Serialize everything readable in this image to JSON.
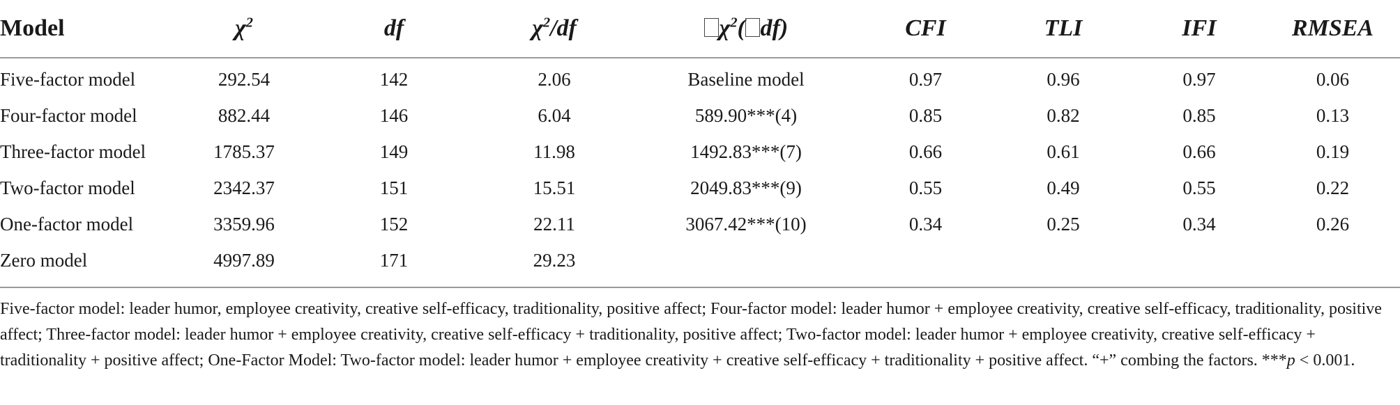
{
  "table": {
    "headers": {
      "model": "Model",
      "chi2": "χ",
      "chi2_sup": "2",
      "df": "df",
      "chi2_df": "χ",
      "chi2_df_sup": "2",
      "chi2_df_rest": "/df",
      "delta_chi2_a": "χ",
      "delta_chi2_sup": "2",
      "delta_chi2_b": "(",
      "delta_chi2_c": "df)",
      "cfi": "CFI",
      "tli": "TLI",
      "ifi": "IFI",
      "rmsea": "RMSEA"
    },
    "rows": [
      {
        "model": "Five-factor model",
        "chi2": "292.54",
        "df": "142",
        "chi2_df": "2.06",
        "delta": "Baseline model",
        "cfi": "0.97",
        "tli": "0.96",
        "ifi": "0.97",
        "rmsea": "0.06"
      },
      {
        "model": "Four-factor model",
        "chi2": "882.44",
        "df": "146",
        "chi2_df": "6.04",
        "delta": "589.90***(4)",
        "cfi": "0.85",
        "tli": "0.82",
        "ifi": "0.85",
        "rmsea": "0.13"
      },
      {
        "model": "Three-factor model",
        "chi2": "1785.37",
        "df": "149",
        "chi2_df": "11.98",
        "delta": "1492.83***(7)",
        "cfi": "0.66",
        "tli": "0.61",
        "ifi": "0.66",
        "rmsea": "0.19"
      },
      {
        "model": "Two-factor model",
        "chi2": "2342.37",
        "df": "151",
        "chi2_df": "15.51",
        "delta": "2049.83***(9)",
        "cfi": "0.55",
        "tli": "0.49",
        "ifi": "0.55",
        "rmsea": "0.22"
      },
      {
        "model": "One-factor model",
        "chi2": "3359.96",
        "df": "152",
        "chi2_df": "22.11",
        "delta": "3067.42***(10)",
        "cfi": "0.34",
        "tli": "0.25",
        "ifi": "0.34",
        "rmsea": "0.26"
      },
      {
        "model": "Zero model",
        "chi2": "4997.89",
        "df": "171",
        "chi2_df": "29.23",
        "delta": "",
        "cfi": "",
        "tli": "",
        "ifi": "",
        "rmsea": ""
      }
    ]
  },
  "note": {
    "text": "Five-factor model: leader humor, employee creativity, creative self-efficacy, traditionality, positive affect; Four-factor model: leader humor + employee creativity, creative self-efficacy, traditionality, positive affect; Three-factor model: leader humor + employee creativity, creative self-efficacy + traditionality, positive affect; Two-factor model: leader humor + employee creativity, creative self-efficacy + traditionality + positive affect; One-Factor Model: Two-factor model: leader humor + employee creativity + creative self-efficacy + traditionality + positive affect. “+” combing the factors. ***",
    "p_symbol": "p",
    "p_rest": " < 0.001."
  }
}
